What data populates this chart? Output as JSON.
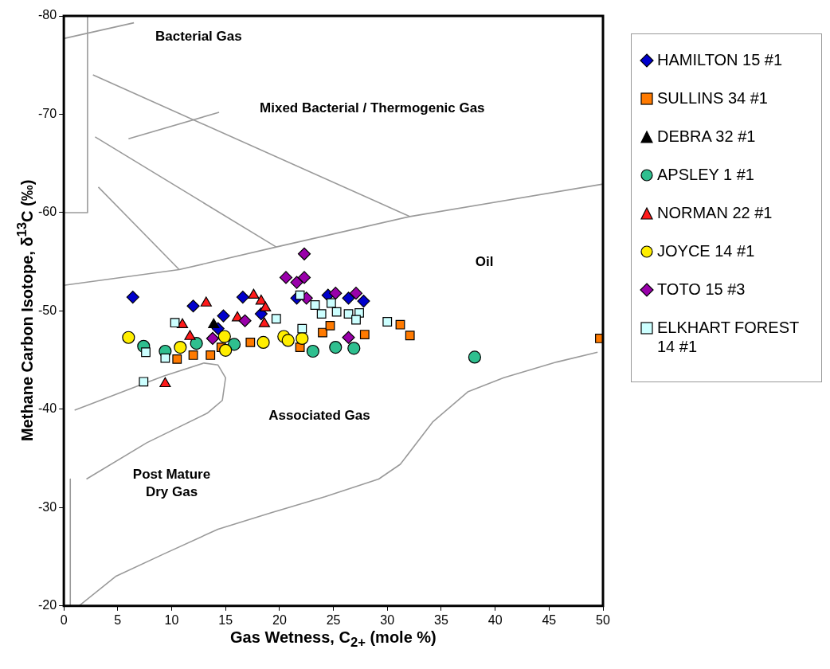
{
  "chart_data": {
    "type": "scatter",
    "xlabel": "Gas Wetness, C$_{2+}$ (mole %)",
    "ylabel": "Methane Carbon Isotope, δ$^{13}$C (‰)",
    "xlim": [
      0,
      50
    ],
    "xticks": [
      0,
      5,
      10,
      15,
      20,
      25,
      30,
      35,
      40,
      45,
      50
    ],
    "ylim": [
      -20,
      -80
    ],
    "yticks": [
      -20,
      -30,
      -40,
      -50,
      -60,
      -70,
      -80
    ],
    "legend": "right",
    "series": [
      {
        "name": "HAMILTON 15 #1",
        "color": "#0000cc",
        "marker": "diamond",
        "x": [
          6.4,
          12.0,
          14.8,
          14.3,
          16.6,
          18.3,
          21.6,
          24.5,
          26.4,
          27.8
        ],
        "values": [
          -51.4,
          -50.5,
          -49.5,
          -48.2,
          -51.4,
          -49.7,
          -51.3,
          -51.6,
          -51.3,
          -51.0
        ]
      },
      {
        "name": "SULLINS 34 #1",
        "color": "#ff7a00",
        "marker": "square",
        "x": [
          10.5,
          12.0,
          13.6,
          14.6,
          17.3,
          21.9,
          24.0,
          24.7,
          27.9,
          31.2,
          32.1,
          49.7
        ],
        "values": [
          -45.1,
          -45.5,
          -45.5,
          -46.3,
          -46.8,
          -46.3,
          -47.8,
          -48.5,
          -47.6,
          -48.6,
          -47.5,
          -47.2
        ]
      },
      {
        "name": "DEBRA 32 #1",
        "color": "#000000",
        "marker": "triangle",
        "x": [
          13.9
        ],
        "values": [
          -48.6
        ]
      },
      {
        "name": "APSLEY 1 #1",
        "color": "#2fbf8f",
        "marker": "circle",
        "x": [
          7.4,
          9.4,
          12.3,
          15.8,
          23.1,
          25.2,
          26.9,
          38.1
        ],
        "values": [
          -46.4,
          -45.9,
          -46.7,
          -46.6,
          -45.9,
          -46.3,
          -46.2,
          -45.3
        ]
      },
      {
        "name": "NORMAN 22 #1",
        "color": "#ff1a1a",
        "marker": "triangle",
        "x": [
          13.2,
          17.6,
          18.3,
          18.7,
          16.1,
          18.6,
          11.0,
          11.7,
          9.4
        ],
        "values": [
          -50.8,
          -51.6,
          -51.0,
          -50.3,
          -49.3,
          -48.7,
          -48.6,
          -47.4,
          -42.6
        ]
      },
      {
        "name": "JOYCE 14 #1",
        "color": "#ffee00",
        "marker": "circle",
        "x": [
          6.0,
          10.8,
          14.9,
          15.0,
          18.5,
          20.4,
          20.8,
          22.1
        ],
        "values": [
          -47.3,
          -46.3,
          -47.4,
          -46.0,
          -46.8,
          -47.4,
          -47.0,
          -47.2
        ]
      },
      {
        "name": "TOTO 15 #3",
        "color": "#9900aa",
        "marker": "diamond",
        "x": [
          13.8,
          16.8,
          22.3,
          20.6,
          21.6,
          22.3,
          25.2,
          27.1,
          26.4,
          22.5
        ],
        "values": [
          -47.2,
          -49.0,
          -55.8,
          -53.4,
          -52.9,
          -53.4,
          -51.8,
          -51.8,
          -47.3,
          -51.3
        ]
      },
      {
        "name": "ELKHART FOREST 14 #1",
        "color": "#ccffff",
        "marker": "square",
        "x": [
          10.3,
          7.6,
          9.4,
          7.4,
          19.7,
          21.9,
          23.3,
          23.9,
          24.8,
          25.3,
          26.4,
          27.4,
          27.1,
          22.1,
          30.0
        ],
        "values": [
          -48.8,
          -45.8,
          -45.2,
          -42.8,
          -49.2,
          -51.6,
          -50.6,
          -49.7,
          -50.8,
          -49.9,
          -49.7,
          -49.8,
          -49.1,
          -48.2,
          -48.9
        ]
      },
      {
        "type": "line",
        "color": "#9a9a9a",
        "marker": "none",
        "x": [
          0,
          2.2,
          2.2
        ],
        "values": [
          -60,
          -60,
          -80
        ]
      },
      {
        "type": "line",
        "color": "#9a9a9a",
        "marker": "none",
        "x": [
          0,
          6.5
        ],
        "values": [
          -77.7,
          -79.3
        ]
      },
      {
        "type": "line",
        "color": "#9a9a9a",
        "marker": "none",
        "x": [
          2.7,
          32.1
        ],
        "values": [
          -74.0,
          -59.6
        ]
      },
      {
        "type": "line",
        "color": "#9a9a9a",
        "marker": "none",
        "x": [
          6.0,
          14.4
        ],
        "values": [
          -67.5,
          -70.2
        ]
      },
      {
        "type": "line",
        "color": "#9a9a9a",
        "marker": "none",
        "x": [
          2.9,
          19.7
        ],
        "values": [
          -67.7,
          -56.5
        ]
      },
      {
        "type": "line",
        "color": "#9a9a9a",
        "marker": "none",
        "x": [
          3.2,
          10.7
        ],
        "values": [
          -62.6,
          -54.2
        ]
      },
      {
        "type": "line",
        "color": "#9a9a9a",
        "marker": "none",
        "x": [
          0,
          10.7,
          19.7,
          32.1,
          50
        ],
        "values": [
          -52.6,
          -54.2,
          -56.5,
          -59.6,
          -62.9
        ]
      },
      {
        "type": "line",
        "color": "#9a9a9a",
        "marker": "none",
        "x": [
          1.0,
          7.4,
          9.3,
          13.0,
          14.3,
          15.0,
          14.7,
          13.3,
          7.7,
          2.1
        ],
        "values": [
          -39.9,
          -42.6,
          -43.4,
          -44.7,
          -44.5,
          -43.2,
          -40.9,
          -39.6,
          -36.6,
          -32.9
        ]
      },
      {
        "type": "line",
        "color": "#9a9a9a",
        "marker": "none",
        "x": [
          0.6,
          0.6
        ],
        "values": [
          -32.9,
          -20
        ]
      },
      {
        "type": "line",
        "color": "#9a9a9a",
        "marker": "none",
        "x": [
          1.4,
          4.8,
          9.3,
          14.3,
          19.3,
          24.2,
          29.2,
          31.2,
          34.2,
          37.5,
          40.8,
          45.7,
          49.5
        ],
        "values": [
          -20,
          -23,
          -25.3,
          -27.8,
          -29.5,
          -31.1,
          -32.9,
          -34.4,
          -38.7,
          -41.8,
          -43.2,
          -44.8,
          -45.8
        ]
      }
    ],
    "annotations": [
      "Bacterial Gas",
      "Mixed Bacterial / Thermogenic Gas",
      "Oil",
      "Associated Gas",
      "Post Mature\nDry Gas"
    ]
  }
}
